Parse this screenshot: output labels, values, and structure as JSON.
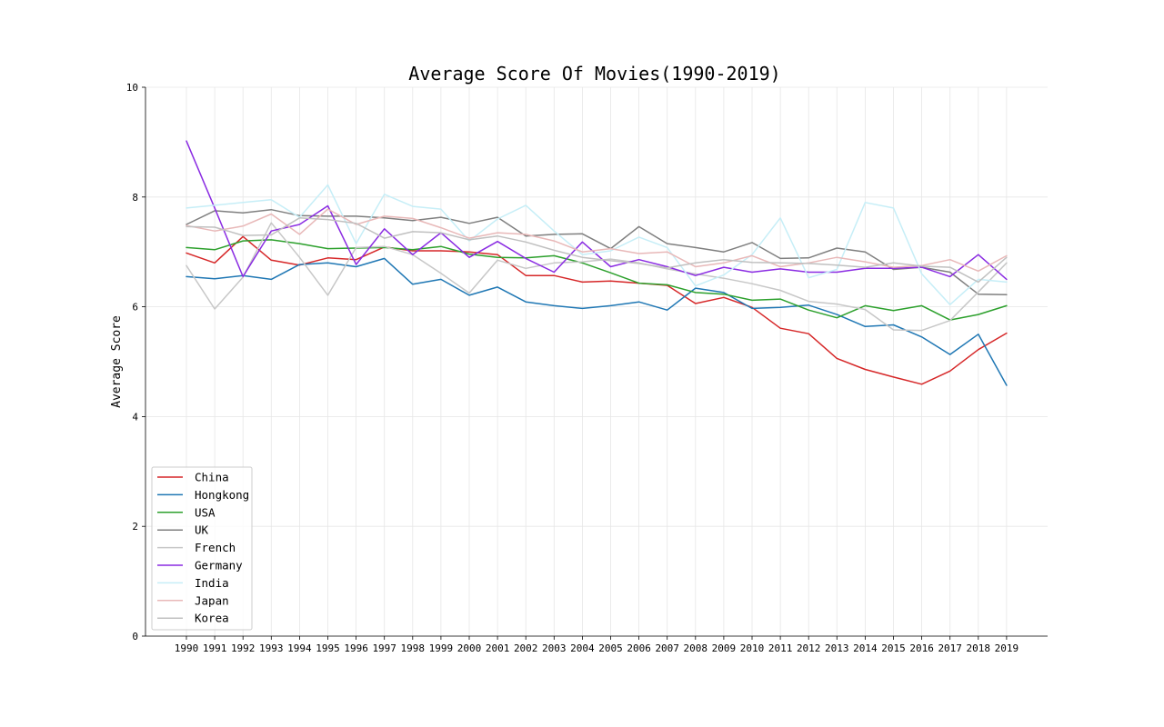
{
  "chart_data": {
    "type": "line",
    "title": "Average Score Of Movies(1990-2019)",
    "xlabel": "",
    "ylabel": "Average Score",
    "x": [
      "1990",
      "1991",
      "1992",
      "1993",
      "1994",
      "1995",
      "1996",
      "1997",
      "1998",
      "1999",
      "2000",
      "2001",
      "2002",
      "2003",
      "2004",
      "2005",
      "2006",
      "2007",
      "2008",
      "2009",
      "2010",
      "2011",
      "2012",
      "2013",
      "2014",
      "2015",
      "2016",
      "2017",
      "2018",
      "2019"
    ],
    "ylim": [
      0,
      10
    ],
    "yticks": [
      0,
      2,
      4,
      6,
      8,
      10
    ],
    "grid": true,
    "legend_position": "lower-left",
    "series": [
      {
        "name": "China",
        "color": "#d62728",
        "values": [
          6.98,
          6.8,
          7.28,
          6.85,
          6.76,
          6.89,
          6.86,
          7.09,
          7.02,
          7.02,
          7.0,
          6.95,
          6.57,
          6.57,
          6.45,
          6.47,
          6.43,
          6.39,
          6.06,
          6.17,
          5.99,
          5.61,
          5.51,
          5.06,
          4.86,
          4.72,
          4.59,
          4.83,
          5.22,
          5.52
        ]
      },
      {
        "name": "Hongkong",
        "color": "#1f77b4",
        "values": [
          6.55,
          6.51,
          6.57,
          6.5,
          6.77,
          6.8,
          6.73,
          6.88,
          6.41,
          6.5,
          6.21,
          6.36,
          6.09,
          6.02,
          5.97,
          6.02,
          6.09,
          5.94,
          6.34,
          6.26,
          5.97,
          5.99,
          6.03,
          5.86,
          5.64,
          5.67,
          5.45,
          5.13,
          5.5,
          4.57
        ]
      },
      {
        "name": "USA",
        "color": "#2ca02c",
        "values": [
          7.08,
          7.04,
          7.2,
          7.22,
          7.15,
          7.06,
          7.07,
          7.08,
          7.04,
          7.1,
          6.96,
          6.9,
          6.89,
          6.93,
          6.8,
          6.62,
          6.43,
          6.4,
          6.26,
          6.23,
          6.12,
          6.14,
          5.94,
          5.8,
          6.02,
          5.93,
          6.02,
          5.76,
          5.86,
          6.02
        ]
      },
      {
        "name": "UK",
        "color": "#7f7f7f",
        "values": [
          7.5,
          7.75,
          7.71,
          7.77,
          7.66,
          7.65,
          7.65,
          7.62,
          7.57,
          7.63,
          7.52,
          7.63,
          7.29,
          7.32,
          7.33,
          7.06,
          7.46,
          7.15,
          7.08,
          7.0,
          7.17,
          6.88,
          6.89,
          7.07,
          7.0,
          6.68,
          6.72,
          6.63,
          6.23,
          6.22
        ]
      },
      {
        "name": "French",
        "color": "#c7c7c7",
        "values": [
          6.75,
          5.96,
          6.54,
          7.53,
          6.9,
          6.21,
          7.08,
          7.1,
          6.95,
          6.61,
          6.25,
          6.85,
          6.7,
          6.8,
          6.82,
          6.87,
          6.8,
          6.69,
          6.6,
          6.52,
          6.42,
          6.3,
          6.1,
          6.05,
          5.95,
          5.58,
          5.57,
          5.75,
          6.27,
          6.8
        ]
      },
      {
        "name": "Germany",
        "color": "#8a2be2",
        "values": [
          9.02,
          7.8,
          6.55,
          7.38,
          7.5,
          7.84,
          6.77,
          7.42,
          6.95,
          7.35,
          6.9,
          7.19,
          6.88,
          6.63,
          7.18,
          6.73,
          6.86,
          6.73,
          6.57,
          6.72,
          6.63,
          6.69,
          6.63,
          6.63,
          6.7,
          6.7,
          6.72,
          6.55,
          6.95,
          6.5
        ]
      },
      {
        "name": "India",
        "color": "#c6eef7",
        "values": [
          7.8,
          7.85,
          7.9,
          7.95,
          7.63,
          8.22,
          7.15,
          8.05,
          7.83,
          7.78,
          7.2,
          7.6,
          7.85,
          7.38,
          6.95,
          7.02,
          7.27,
          7.08,
          6.38,
          6.58,
          6.95,
          7.62,
          6.53,
          6.68,
          7.9,
          7.8,
          6.6,
          6.04,
          6.5,
          6.45
        ]
      },
      {
        "name": "Japan",
        "color": "#e8b8b8",
        "values": [
          7.48,
          7.38,
          7.47,
          7.69,
          7.32,
          7.78,
          7.5,
          7.65,
          7.61,
          7.44,
          7.25,
          7.35,
          7.32,
          7.2,
          7.0,
          7.06,
          6.97,
          7.0,
          6.73,
          6.8,
          6.93,
          6.73,
          6.8,
          6.9,
          6.82,
          6.72,
          6.75,
          6.86,
          6.65,
          6.93
        ]
      },
      {
        "name": "Korea",
        "color": "#c0c0c0",
        "values": [
          7.46,
          7.45,
          7.3,
          7.31,
          7.62,
          7.59,
          7.52,
          7.25,
          7.37,
          7.35,
          7.22,
          7.29,
          7.18,
          7.03,
          6.9,
          6.84,
          6.79,
          6.71,
          6.8,
          6.86,
          6.81,
          6.8,
          6.79,
          6.76,
          6.72,
          6.8,
          6.74,
          6.72,
          6.45,
          6.9
        ]
      }
    ]
  }
}
